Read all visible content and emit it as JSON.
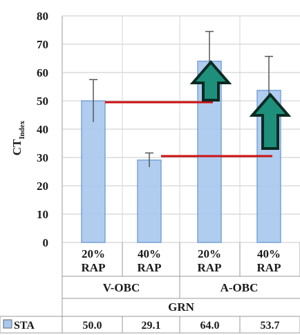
{
  "chart_data": {
    "type": "bar",
    "ylabel": "CT",
    "ylabel_sub": "Index",
    "ylim": [
      0,
      80
    ],
    "yticks": [
      "0",
      "10",
      "20",
      "30",
      "40",
      "50",
      "60",
      "70",
      "80"
    ],
    "grid": true,
    "categories": [
      {
        "top": "20%",
        "bottom": "RAP"
      },
      {
        "top": "40%",
        "bottom": "RAP"
      },
      {
        "top": "20%",
        "bottom": "RAP"
      },
      {
        "top": "40%",
        "bottom": "RAP"
      }
    ],
    "groups": [
      {
        "label": "V-OBC",
        "span": [
          0,
          1
        ]
      },
      {
        "label": "A-OBC",
        "span": [
          2,
          3
        ]
      }
    ],
    "outer_group": "GRN",
    "series": [
      {
        "name": "STA",
        "values": [
          50.0,
          29.1,
          64.0,
          53.7
        ],
        "error": [
          7.5,
          2.5,
          10.5,
          12.0
        ]
      }
    ],
    "table_values": [
      "50.0",
      "29.1",
      "64.0",
      "53.7"
    ],
    "reference_lines": [
      {
        "y": 49.5,
        "from_index": 0,
        "to_index": 2
      },
      {
        "y": 30.5,
        "from_index": 1,
        "to_index": 3
      }
    ],
    "arrows": [
      {
        "index": 2,
        "direction": "up"
      },
      {
        "index": 3,
        "direction": "up"
      }
    ],
    "colors": {
      "bar": "#a8c8ee",
      "bar_edge": "#6b9ad6",
      "ref_line": "#cc1111",
      "arrow": "#1e8f7a",
      "arrow_edge": "#0b2a22"
    }
  }
}
